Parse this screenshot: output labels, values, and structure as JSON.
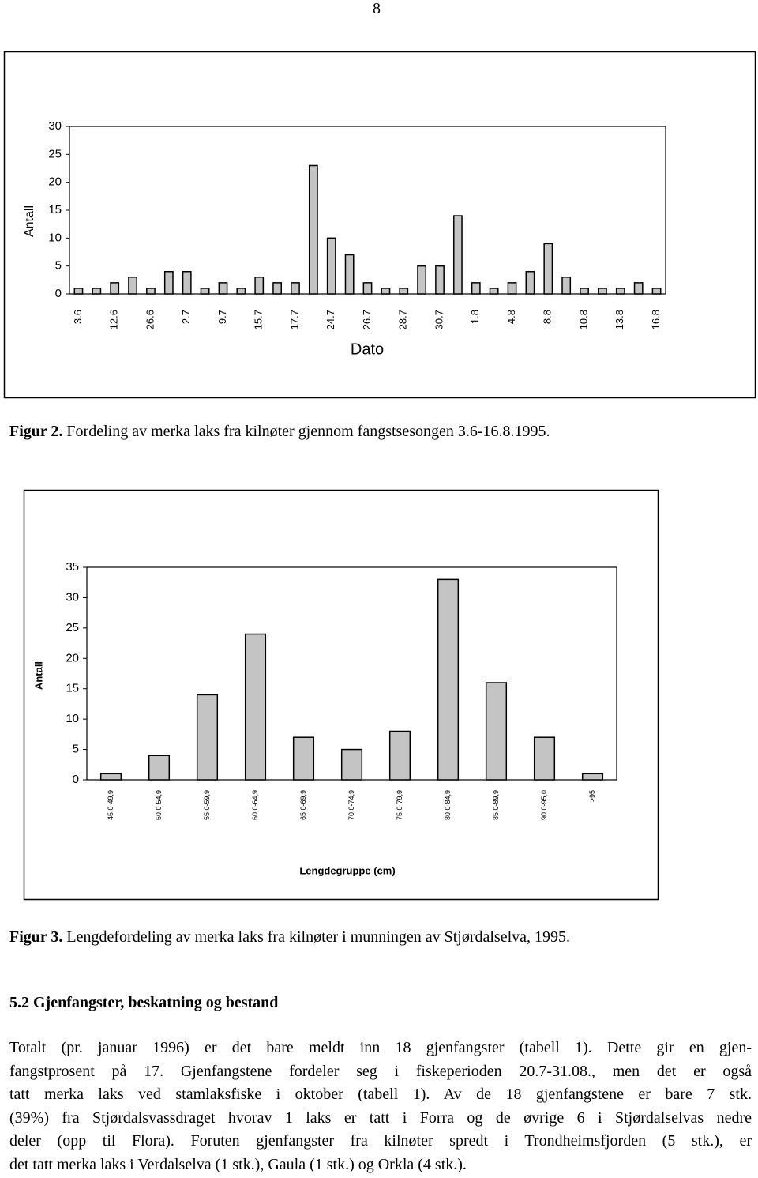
{
  "page_number": "8",
  "chart_data": [
    {
      "type": "bar",
      "ylabel": "Antall",
      "xlabel": "Dato",
      "caption": {
        "label": "Figur 2.",
        "text": "Fordeling av merka laks fra kilnøter gjennom fangstsesongen 3.6-16.8.1995."
      },
      "categories": [
        "3.6",
        null,
        "12.6",
        null,
        "26.6",
        null,
        "2.7",
        null,
        "9.7",
        null,
        "15.7",
        null,
        "17.7",
        null,
        "24.7",
        null,
        "26.7",
        null,
        "28.7",
        null,
        "30.7",
        null,
        "1.8",
        null,
        "4.8",
        null,
        "8.8",
        null,
        "10.8",
        null,
        "13.8",
        null,
        "16.8"
      ],
      "values": [
        1,
        1,
        2,
        3,
        1,
        4,
        4,
        1,
        2,
        1,
        3,
        2,
        2,
        23,
        10,
        7,
        2,
        1,
        1,
        5,
        5,
        14,
        2,
        1,
        2,
        4,
        9,
        3,
        1,
        1,
        1,
        2,
        1
      ],
      "color": "#c4c4c4",
      "ylim": [
        0,
        30
      ],
      "yticks": [
        0,
        5,
        10,
        15,
        20,
        25,
        30
      ]
    },
    {
      "type": "bar",
      "ylabel": "Antall",
      "xlabel": "Lengdegruppe (cm)",
      "caption": {
        "label": "Figur 3.",
        "text": "Lengdefordeling av merka laks fra kilnøter i munningen av Stjørdalselva, 1995."
      },
      "categories": [
        "45,0-49,9",
        "50,0-54,9",
        "55,0-59,9",
        "60,0-64,9",
        "65,0-69,9",
        "70,0-74,9",
        "75,0-79,9",
        "80,0-84,9",
        "85,0-89,9",
        "90,0-95,0",
        ">95"
      ],
      "values": [
        1,
        4,
        14,
        24,
        7,
        5,
        8,
        33,
        16,
        7,
        1
      ],
      "color": "#c4c4c4",
      "ylim": [
        0,
        35
      ],
      "yticks": [
        0,
        5,
        10,
        15,
        20,
        25,
        30,
        35
      ]
    }
  ],
  "section": {
    "heading": "5.2 Gjenfangster, beskatning og bestand",
    "lines": [
      "Totalt (pr. januar 1996) er det bare meldt inn 18 gjenfangster (tabell 1). Dette gir en gjen-",
      "fangstprosent på 17. Gjenfangstene fordeler seg i fiskeperioden 20.7-31.08., men det er også",
      "tatt merka laks ved stamlaksfiske i oktober (tabell 1). Av de 18 gjenfangstene er bare 7 stk.",
      "(39%) fra Stjørdalsvassdraget hvorav 1 laks er tatt i Forra og de øvrige 6 i Stjørdalselvas nedre",
      "deler (opp til Flora). Foruten gjenfangster fra kilnøter spredt i Trondheimsfjorden (5 stk.), er",
      "det tatt merka laks i Verdalselva (1 stk.), Gaula (1 stk.) og Orkla (4 stk.)."
    ]
  }
}
